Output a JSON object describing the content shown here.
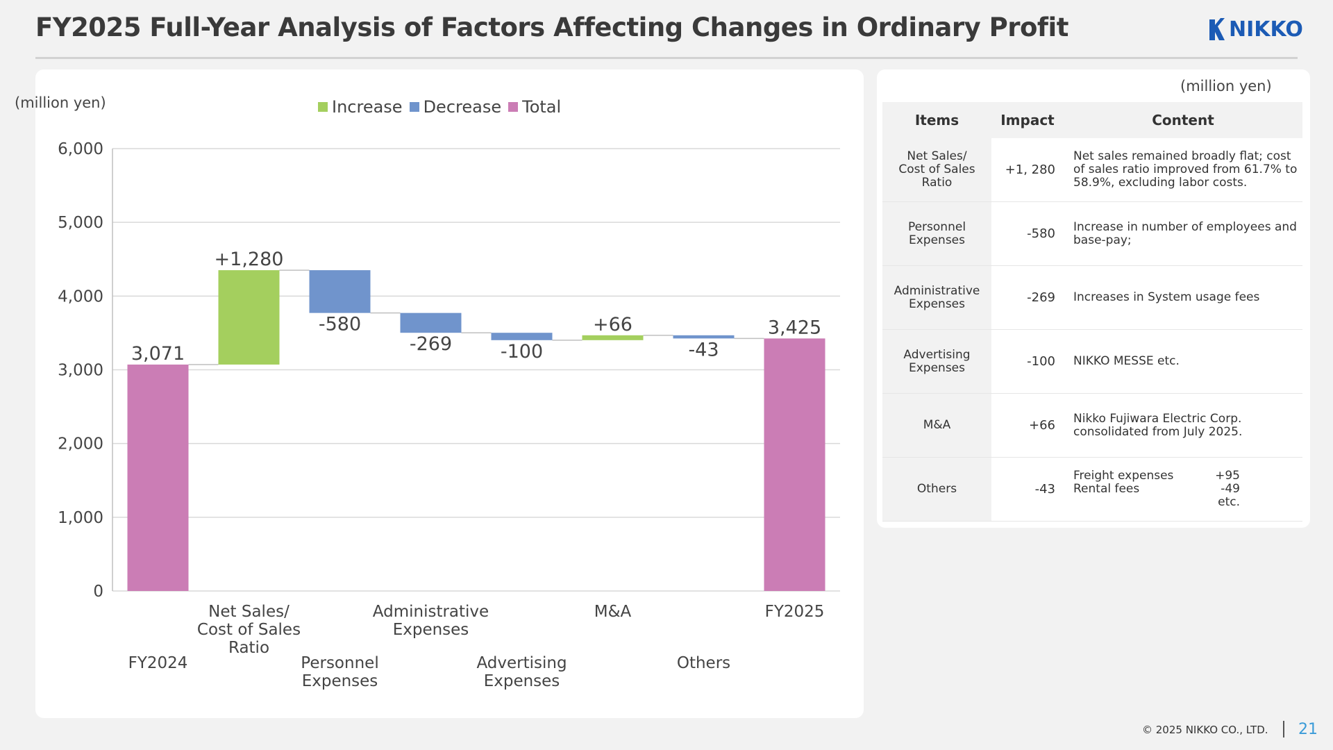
{
  "title": "FY2025 Full-Year Analysis of Factors Affecting Changes in Ordinary Profit",
  "logo": {
    "text": "NIKKO",
    "icon": "nikko-logo-mark",
    "color": "#1c5bb5"
  },
  "chart_unit": "(million yen)",
  "legend": [
    {
      "label": "Increase",
      "color": "#a4cf5e"
    },
    {
      "label": "Decrease",
      "color": "#7094cc"
    },
    {
      "label": "Total",
      "color": "#cb7db5"
    }
  ],
  "chart_data": {
    "type": "bar",
    "subtype": "waterfall",
    "categories": [
      [
        "FY2024"
      ],
      [
        "Net Sales/",
        "Cost of Sales",
        "Ratio"
      ],
      [
        "Personnel",
        "Expenses"
      ],
      [
        "Administrative",
        "Expenses"
      ],
      [
        "Advertising",
        "Expenses"
      ],
      [
        "M&A"
      ],
      [
        "Others"
      ],
      [
        "FY2025"
      ]
    ],
    "values": [
      3071,
      1280,
      -580,
      -269,
      -100,
      66,
      -43,
      3425
    ],
    "kinds": [
      "total",
      "increase",
      "decrease",
      "decrease",
      "decrease",
      "increase",
      "decrease",
      "total"
    ],
    "data_labels": [
      "3,071",
      "+1,280",
      "-580",
      "-269",
      "-100",
      "+66",
      "-43",
      "3,425"
    ],
    "yticks": [
      "0",
      "1,000",
      "2,000",
      "3,000",
      "4,000",
      "5,000",
      "6,000"
    ],
    "ylim": [
      0,
      6000
    ],
    "grid": true,
    "legend_position": "top-center",
    "colors": {
      "increase": "#a4cf5e",
      "decrease": "#7094cc",
      "total": "#cb7db5"
    }
  },
  "table": {
    "unit": "(million yen)",
    "headers": {
      "items": "Items",
      "impact": "Impact",
      "content": "Content"
    },
    "rows": [
      {
        "item": [
          "Net Sales/",
          "Cost of Sales",
          "Ratio"
        ],
        "impact": "+1, 280",
        "content": [
          "Net sales remained broadly flat; cost",
          "of sales ratio improved from 61.7% to",
          "58.9%, excluding labor costs."
        ]
      },
      {
        "item": [
          "Personnel",
          "Expenses"
        ],
        "impact": "-580",
        "content": [
          "Increase in number of employees and",
          "base-pay;"
        ]
      },
      {
        "item": [
          "Administrative",
          "Expenses"
        ],
        "impact": "-269",
        "content": [
          "Increases in System usage fees"
        ]
      },
      {
        "item": [
          "Advertising",
          "Expenses"
        ],
        "impact": "-100",
        "content": [
          "NIKKO MESSE etc."
        ]
      },
      {
        "item": [
          "M&A"
        ],
        "impact": "+66",
        "content": [
          "Nikko Fujiwara Electric Corp.",
          "consolidated from July 2025."
        ]
      },
      {
        "item": [
          "Others"
        ],
        "impact": "-43",
        "content_pairs": [
          [
            "Freight expenses",
            "+95"
          ],
          [
            "Rental fees",
            "-49"
          ],
          [
            "",
            "etc."
          ]
        ]
      }
    ]
  },
  "footer": {
    "copyright": "© 2025 NIKKO CO., LTD.",
    "page": "21"
  }
}
